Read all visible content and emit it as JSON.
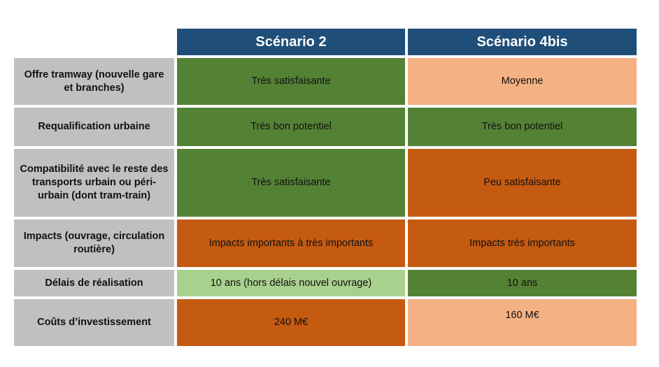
{
  "colors": {
    "header_blue": "#1f4e79",
    "label_grey": "#c0c0c0",
    "very_good_green": "#548235",
    "good_light_green": "#a9d18e",
    "poor_orange": "#c55a11",
    "medium_peach": "#f4b183"
  },
  "table": {
    "columns": [
      "Scénario 2",
      "Scénario 4bis"
    ],
    "rows": [
      {
        "label": "Offre tramway (nouvelle gare et branches)",
        "values": [
          "Très satisfaisante",
          "Moyenne"
        ],
        "ratings": [
          "very-good",
          "medium"
        ]
      },
      {
        "label": "Requalification urbaine",
        "values": [
          "Très bon potentiel",
          "Très bon potentiel"
        ],
        "ratings": [
          "very-good",
          "very-good"
        ]
      },
      {
        "label": "Compatibilité avec le reste des transports urbain ou péri-urbain (dont tram-train)",
        "values": [
          "Très satisfaisante",
          "Peu satisfaisante"
        ],
        "ratings": [
          "very-good",
          "poor"
        ]
      },
      {
        "label": "Impacts (ouvrage, circulation routière)",
        "values": [
          "Impacts importants à très importants",
          "Impacts très importants"
        ],
        "ratings": [
          "poor",
          "poor"
        ]
      },
      {
        "label": "Délais de réalisation",
        "values": [
          "10 ans (hors délais nouvel ouvrage)",
          "10 ans"
        ],
        "ratings": [
          "good",
          "very-good"
        ]
      },
      {
        "label": "Coûts d’investissement",
        "values": [
          "240 M€",
          "160 M€"
        ],
        "ratings": [
          "poor",
          "medium"
        ]
      }
    ]
  }
}
